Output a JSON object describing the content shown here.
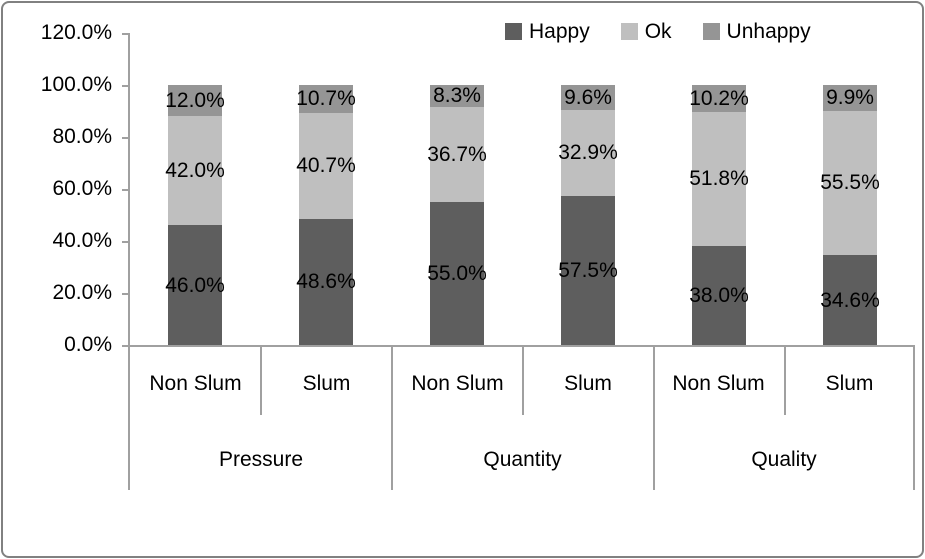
{
  "chart_data": {
    "type": "bar",
    "variant": "stacked-100-percent",
    "title": "",
    "grid": false,
    "legend_position": "top-right",
    "y_axis": {
      "min": 0,
      "max": 120,
      "step": 20,
      "ticks": [
        "0.0%",
        "20.0%",
        "40.0%",
        "60.0%",
        "80.0%",
        "100.0%",
        "120.0%"
      ]
    },
    "groups": [
      "Pressure",
      "Quantity",
      "Quality"
    ],
    "categories": [
      "Non Slum",
      "Slum",
      "Non Slum",
      "Slum",
      "Non Slum",
      "Slum"
    ],
    "series": [
      {
        "name": "Happy",
        "color": "#5e5e5e",
        "values": [
          46.0,
          48.6,
          55.0,
          57.5,
          38.0,
          34.6
        ],
        "labels": [
          "46.0%",
          "48.6%",
          "55.0%",
          "57.5%",
          "38.0%",
          "34.6%"
        ]
      },
      {
        "name": "Ok",
        "color": "#bfbfbf",
        "values": [
          42.0,
          40.7,
          36.7,
          32.9,
          51.8,
          55.5
        ],
        "labels": [
          "42.0%",
          "40.7%",
          "36.7%",
          "32.9%",
          "51.8%",
          "55.5%"
        ]
      },
      {
        "name": "Unhappy",
        "color": "#959595",
        "values": [
          12.0,
          10.7,
          8.3,
          9.6,
          10.2,
          9.9
        ],
        "labels": [
          "12.0%",
          "10.7%",
          "8.3%",
          "9.6%",
          "10.2%",
          "9.9%"
        ]
      }
    ]
  }
}
